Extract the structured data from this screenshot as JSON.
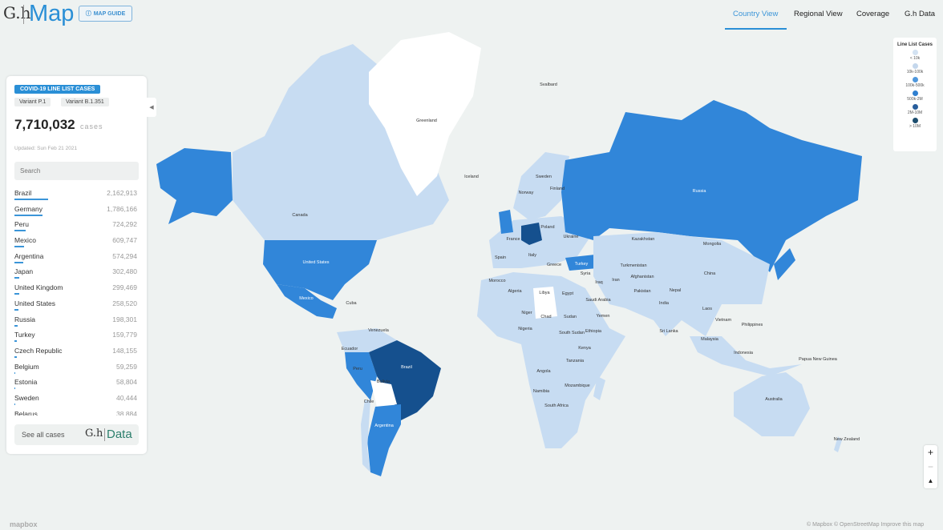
{
  "header": {
    "logo": "G.h",
    "brand": "Map",
    "guide_label": "MAP GUIDE",
    "nav": [
      "Country View",
      "Regional View",
      "Coverage",
      "G.h Data"
    ],
    "active_nav": "Country View"
  },
  "panel": {
    "badge": "COVID-19 LINE LIST CASES",
    "variants": [
      "Variant P.1",
      "Variant B.1.351"
    ],
    "total": "7,710,032",
    "total_unit": "cases",
    "updated": "Updated: Sun Feb 21 2021",
    "search_placeholder": "Search",
    "rows": [
      {
        "name": "Brazil",
        "value": "2,162,913"
      },
      {
        "name": "Germany",
        "value": "1,786,166"
      },
      {
        "name": "Peru",
        "value": "724,292"
      },
      {
        "name": "Mexico",
        "value": "609,747"
      },
      {
        "name": "Argentina",
        "value": "574,294"
      },
      {
        "name": "Japan",
        "value": "302,480"
      },
      {
        "name": "United Kingdom",
        "value": "299,469"
      },
      {
        "name": "United States",
        "value": "258,520"
      },
      {
        "name": "Russia",
        "value": "198,301"
      },
      {
        "name": "Turkey",
        "value": "159,779"
      },
      {
        "name": "Czech Republic",
        "value": "148,155"
      },
      {
        "name": "Belgium",
        "value": "59,259"
      },
      {
        "name": "Estonia",
        "value": "58,804"
      },
      {
        "name": "Sweden",
        "value": "40,444"
      },
      {
        "name": "Belarus",
        "value": "38,884"
      }
    ],
    "see_all": "See all cases",
    "data_logo": "G.h",
    "data_label": "Data"
  },
  "legend": {
    "title": "Line List Cases",
    "items": [
      {
        "label": "< 10k",
        "color": "#d3e2f2"
      },
      {
        "label": "10k-100k",
        "color": "#c4d7ec"
      },
      {
        "label": "100k-500k",
        "color": "#4f97dc"
      },
      {
        "label": "500k-2M",
        "color": "#2f7fd0"
      },
      {
        "label": "2M-10M",
        "color": "#285e9c"
      },
      {
        "label": "> 10M",
        "color": "#1d4d6e"
      }
    ]
  },
  "map": {
    "colors": {
      "ocean": "#eef2f1",
      "none": "#ffffff",
      "light": "#c7dcf2",
      "medium": "#3186d9",
      "dark": "#15508e"
    },
    "labels": [
      "Greenland",
      "Canada",
      "United States",
      "Mexico",
      "Cuba",
      "Venezuela",
      "Ecuador",
      "Peru",
      "Brazil",
      "Bolivia",
      "Chile",
      "Argentina",
      "Iceland",
      "Svalbard",
      "Norway",
      "Sweden",
      "Finland",
      "Poland",
      "Ukraine",
      "France",
      "Spain",
      "Italy",
      "Greece",
      "Turkey",
      "Morocco",
      "Algeria",
      "Libya",
      "Egypt",
      "Niger",
      "Chad",
      "Sudan",
      "South Sudan",
      "Nigeria",
      "Ethiopia",
      "Kenya",
      "Tanzania",
      "Angola",
      "Namibia",
      "Mozambique",
      "South Africa",
      "Syria",
      "Iraq",
      "Iran",
      "Saudi Arabia",
      "Yemen",
      "Turkmenistan",
      "Kazakhstan",
      "Afghanistan",
      "Pakistan",
      "India",
      "Nepal",
      "Sri Lanka",
      "Mongolia",
      "China",
      "Russia",
      "Laos",
      "Vietnam",
      "Philippines",
      "Malaysia",
      "Indonesia",
      "Papua New Guinea",
      "Australia",
      "New Zealand"
    ]
  },
  "controls": {
    "zoom_in": "+",
    "zoom_out": "−",
    "compass": "▲"
  },
  "attribution": "© Mapbox © OpenStreetMap Improve this map",
  "mapbox": "mapbox"
}
